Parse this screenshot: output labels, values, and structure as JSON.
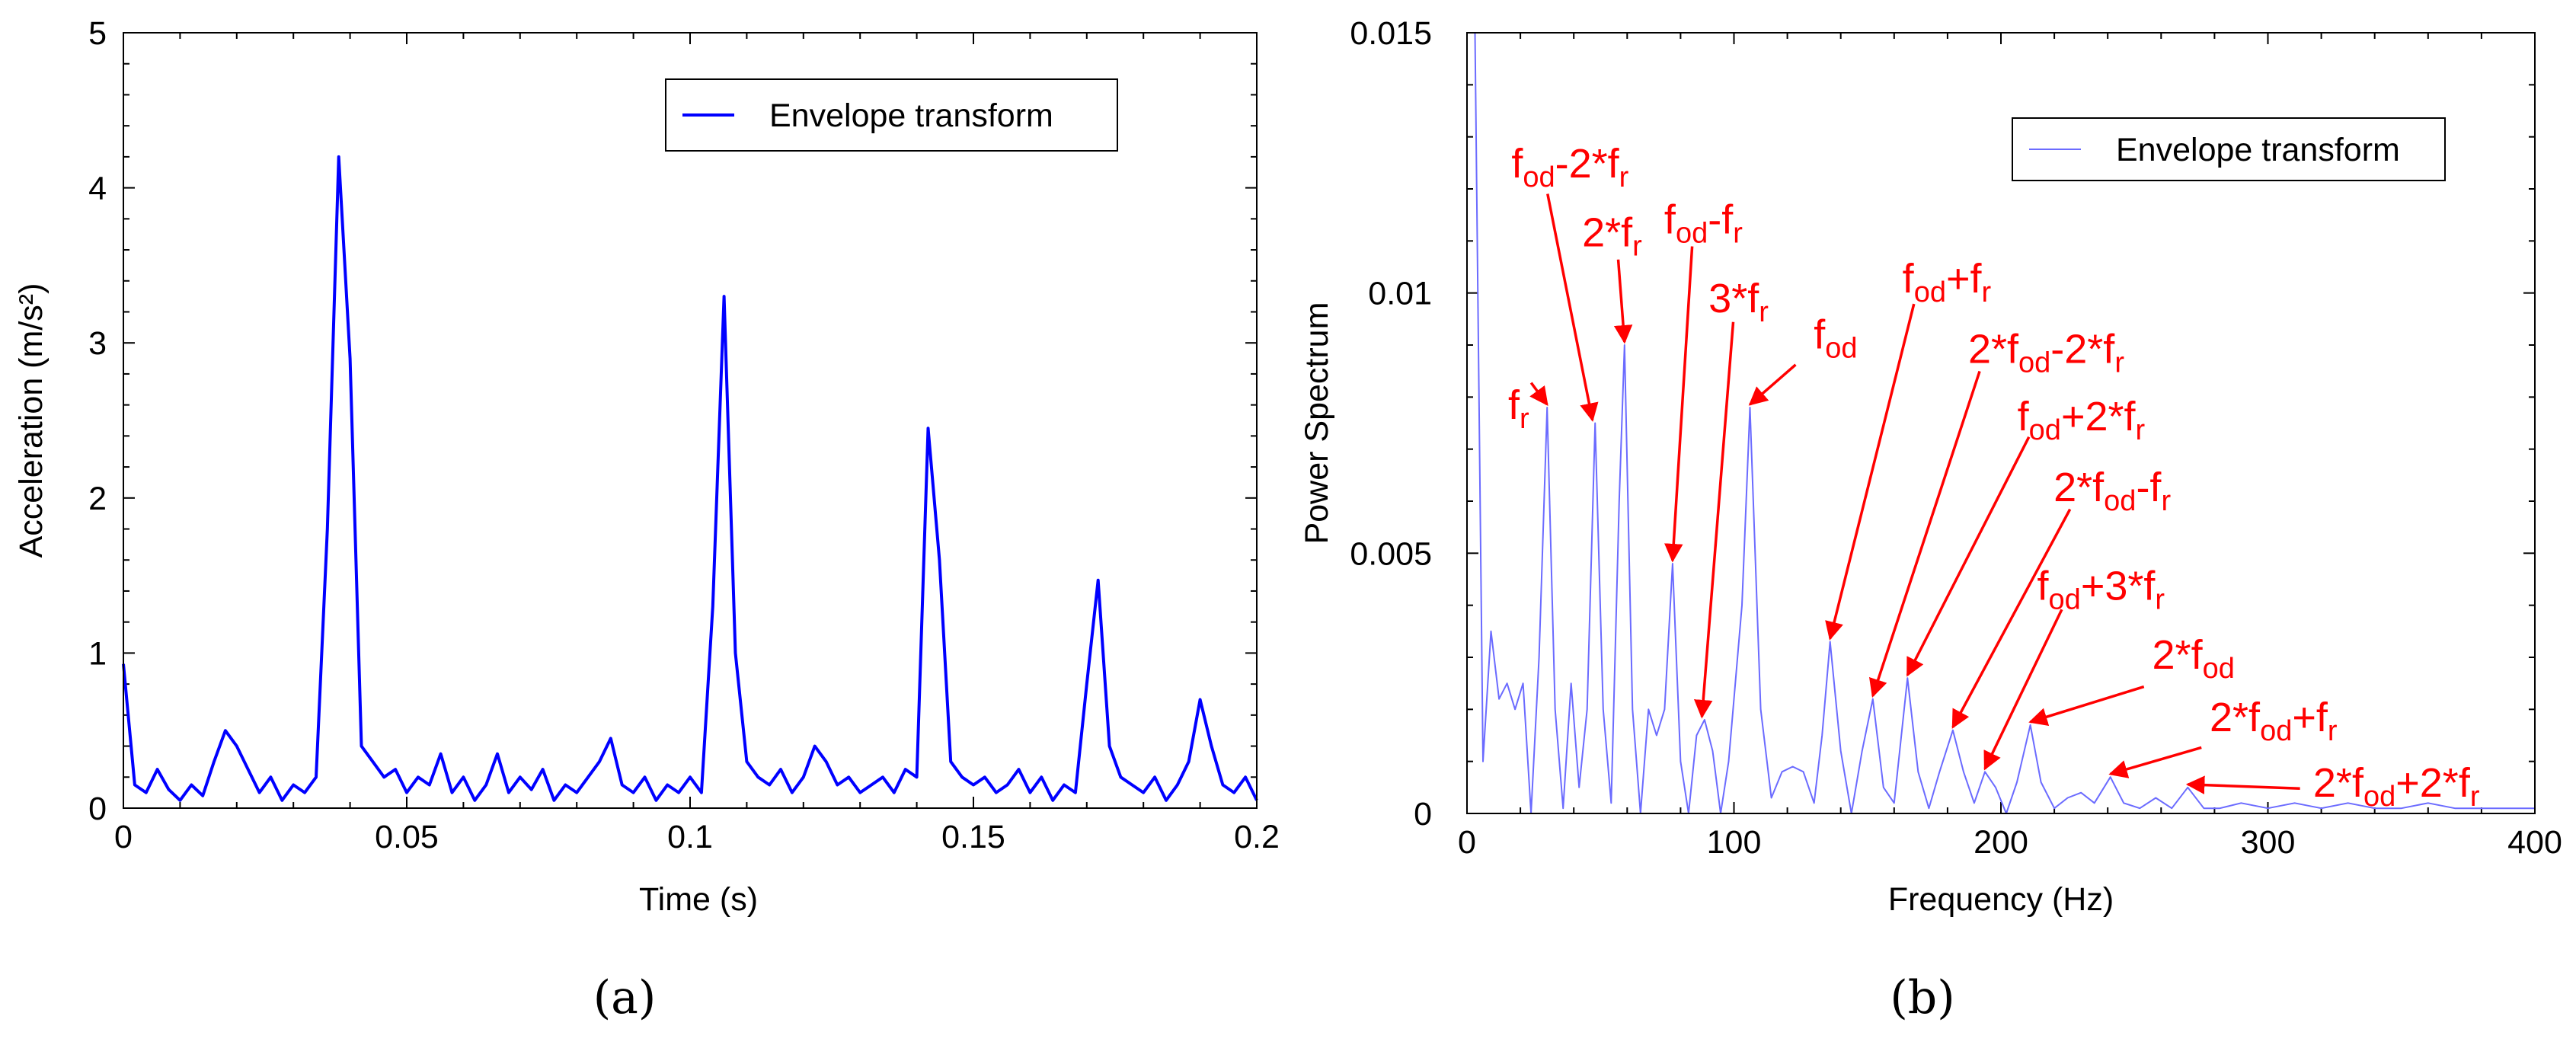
{
  "chart_data": [
    {
      "type": "line",
      "caption": "(a)",
      "xlabel": "Time (s)",
      "ylabel": "Acceleration (m/s²)",
      "xlim": [
        0,
        0.2
      ],
      "ylim": [
        0,
        5
      ],
      "xticks": [
        0,
        0.05,
        0.1,
        0.15,
        0.2
      ],
      "yticks": [
        0,
        1,
        2,
        3,
        4,
        5
      ],
      "legend": "upper right",
      "x": [
        0,
        0.002,
        0.004,
        0.006,
        0.008,
        0.01,
        0.012,
        0.014,
        0.016,
        0.018,
        0.02,
        0.022,
        0.024,
        0.026,
        0.028,
        0.03,
        0.032,
        0.034,
        0.036,
        0.038,
        0.04,
        0.042,
        0.044,
        0.046,
        0.048,
        0.05,
        0.052,
        0.054,
        0.056,
        0.058,
        0.06,
        0.062,
        0.064,
        0.066,
        0.068,
        0.07,
        0.072,
        0.074,
        0.076,
        0.078,
        0.08,
        0.082,
        0.084,
        0.086,
        0.088,
        0.09,
        0.092,
        0.094,
        0.096,
        0.098,
        0.1,
        0.102,
        0.104,
        0.106,
        0.108,
        0.11,
        0.112,
        0.114,
        0.116,
        0.118,
        0.12,
        0.122,
        0.124,
        0.126,
        0.128,
        0.13,
        0.132,
        0.134,
        0.136,
        0.138,
        0.14,
        0.142,
        0.144,
        0.146,
        0.148,
        0.15,
        0.152,
        0.154,
        0.156,
        0.158,
        0.16,
        0.162,
        0.164,
        0.166,
        0.168,
        0.17,
        0.172,
        0.174,
        0.176,
        0.178,
        0.18,
        0.182,
        0.184,
        0.186,
        0.188,
        0.19,
        0.192,
        0.194,
        0.196,
        0.198,
        0.2
      ],
      "series": [
        {
          "name": "Envelope transform",
          "color": "#0000ff",
          "values": [
            0.93,
            0.15,
            0.1,
            0.25,
            0.12,
            0.05,
            0.15,
            0.08,
            0.3,
            0.5,
            0.4,
            0.25,
            0.1,
            0.2,
            0.05,
            0.15,
            0.1,
            0.2,
            1.8,
            4.2,
            2.9,
            0.4,
            0.3,
            0.2,
            0.25,
            0.1,
            0.2,
            0.15,
            0.35,
            0.1,
            0.2,
            0.05,
            0.15,
            0.35,
            0.1,
            0.2,
            0.12,
            0.25,
            0.05,
            0.15,
            0.1,
            0.2,
            0.3,
            0.45,
            0.15,
            0.1,
            0.2,
            0.05,
            0.15,
            0.1,
            0.2,
            0.1,
            1.3,
            3.3,
            1.0,
            0.3,
            0.2,
            0.15,
            0.25,
            0.1,
            0.2,
            0.4,
            0.3,
            0.15,
            0.2,
            0.1,
            0.15,
            0.2,
            0.1,
            0.25,
            0.2,
            2.45,
            1.6,
            0.3,
            0.2,
            0.15,
            0.2,
            0.1,
            0.15,
            0.25,
            0.1,
            0.2,
            0.05,
            0.15,
            0.1,
            0.8,
            1.47,
            0.4,
            0.2,
            0.15,
            0.1,
            0.2,
            0.05,
            0.15,
            0.3,
            0.7,
            0.4,
            0.15,
            0.1,
            0.2,
            0.05
          ]
        }
      ]
    },
    {
      "type": "line",
      "caption": "(b)",
      "xlabel": "Frequency (Hz)",
      "ylabel": "Power Spectrum",
      "xlim": [
        0,
        400
      ],
      "ylim": [
        0,
        0.015
      ],
      "xticks": [
        0,
        100,
        200,
        300,
        400
      ],
      "yticks": [
        0,
        0.005,
        0.01,
        0.015
      ],
      "legend": "upper right",
      "x": [
        0,
        3,
        6,
        9,
        12,
        15,
        18,
        21,
        24,
        27,
        30,
        33,
        36,
        39,
        42,
        45,
        48,
        51,
        54,
        57,
        59,
        62,
        65,
        68,
        71,
        74,
        77,
        80,
        83,
        86,
        89,
        92,
        95,
        98,
        103,
        106,
        110,
        114,
        118,
        122,
        126,
        130,
        133,
        136,
        140,
        144,
        148,
        152,
        156,
        160,
        165,
        169,
        173,
        177,
        182,
        186,
        190,
        194,
        198,
        202,
        206,
        211,
        215,
        220,
        225,
        230,
        235,
        241,
        246,
        252,
        258,
        264,
        270,
        276,
        282,
        290,
        300,
        310,
        320,
        330,
        340,
        350,
        360,
        370,
        380,
        390,
        400
      ],
      "series": [
        {
          "name": "Envelope transform",
          "color": "#6b6bff",
          "values": [
            0.015,
            0.015,
            0.001,
            0.0035,
            0.0022,
            0.0025,
            0.002,
            0.0025,
            0,
            0.003,
            0.0078,
            0.002,
            0.0001,
            0.0025,
            0.0005,
            0.002,
            0.0075,
            0.002,
            0.0002,
            0.006,
            0.009,
            0.002,
            0,
            0.002,
            0.0015,
            0.002,
            0.0048,
            0.001,
            0,
            0.0015,
            0.0018,
            0.0012,
            0,
            0.001,
            0.004,
            0.0078,
            0.002,
            0.0003,
            0.0008,
            0.0009,
            0.0008,
            0.0002,
            0.0015,
            0.0033,
            0.0012,
            0,
            0.0012,
            0.0022,
            0.0005,
            0.0002,
            0.0026,
            0.0008,
            0.0001,
            0.0008,
            0.0016,
            0.0008,
            0.0002,
            0.0008,
            0.0005,
            0,
            0.0006,
            0.0017,
            0.0006,
            0.0001,
            0.0003,
            0.0004,
            0.0002,
            0.0007,
            0.0002,
            0.0001,
            0.0003,
            0.0001,
            0.0005,
            0.0001,
            0.0001,
            0.0002,
            0.0001,
            0.0002,
            0.0001,
            0.0002,
            0.0001,
            0.0001,
            0.0002,
            0.0001,
            0.0001,
            0.0001,
            0.0001
          ]
        }
      ],
      "annotations": [
        {
          "label": [
            {
              "text": "f"
            },
            {
              "sub": "r"
            }
          ],
          "x": 30,
          "y": 0.0078
        },
        {
          "label": [
            {
              "text": "f"
            },
            {
              "sub": "od"
            },
            {
              "text": "-2*f"
            },
            {
              "sub": "r"
            }
          ],
          "x": 47,
          "y": 0.0075
        },
        {
          "label": [
            {
              "text": "2*f"
            },
            {
              "sub": "r"
            }
          ],
          "x": 59,
          "y": 0.009
        },
        {
          "label": [
            {
              "text": "f"
            },
            {
              "sub": "od"
            },
            {
              "text": "-f"
            },
            {
              "sub": "r"
            }
          ],
          "x": 77,
          "y": 0.0048
        },
        {
          "label": [
            {
              "text": "3*f"
            },
            {
              "sub": "r"
            }
          ],
          "x": 88,
          "y": 0.0018
        },
        {
          "label": [
            {
              "text": "f"
            },
            {
              "sub": "od"
            }
          ],
          "x": 106,
          "y": 0.0078
        },
        {
          "label": [
            {
              "text": "f"
            },
            {
              "sub": "od"
            },
            {
              "text": "+f"
            },
            {
              "sub": "r"
            }
          ],
          "x": 136,
          "y": 0.0033
        },
        {
          "label": [
            {
              "text": "2*f"
            },
            {
              "sub": "od"
            },
            {
              "text": "-2*f"
            },
            {
              "sub": "r"
            }
          ],
          "x": 152,
          "y": 0.0022
        },
        {
          "label": [
            {
              "text": "f"
            },
            {
              "sub": "od"
            },
            {
              "text": "+2*f"
            },
            {
              "sub": "r"
            }
          ],
          "x": 165,
          "y": 0.0026
        },
        {
          "label": [
            {
              "text": "2*f"
            },
            {
              "sub": "od"
            },
            {
              "text": "-f"
            },
            {
              "sub": "r"
            }
          ],
          "x": 182,
          "y": 0.0016
        },
        {
          "label": [
            {
              "text": "f"
            },
            {
              "sub": "od"
            },
            {
              "text": "+3*f"
            },
            {
              "sub": "r"
            }
          ],
          "x": 194,
          "y": 0.0008
        },
        {
          "label": [
            {
              "text": "2*f"
            },
            {
              "sub": "od"
            }
          ],
          "x": 211,
          "y": 0.0017
        },
        {
          "label": [
            {
              "text": "2*f"
            },
            {
              "sub": "od"
            },
            {
              "text": "+f"
            },
            {
              "sub": "r"
            }
          ],
          "x": 241,
          "y": 0.0007
        },
        {
          "label": [
            {
              "text": "2*f"
            },
            {
              "sub": "od"
            },
            {
              "text": "+2*f"
            },
            {
              "sub": "r"
            }
          ],
          "x": 270,
          "y": 0.0005
        }
      ]
    }
  ]
}
